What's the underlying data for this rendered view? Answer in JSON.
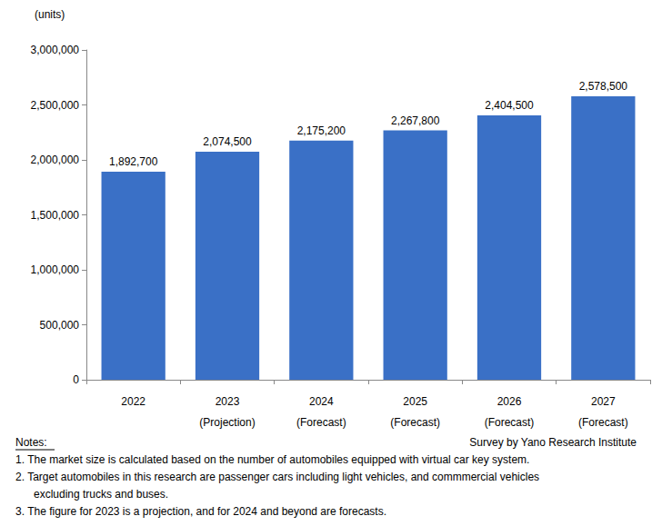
{
  "chart_data": {
    "type": "bar",
    "y_label": "(units)",
    "categories": [
      "2022",
      "2023\n(Projection)",
      "2024\n(Forecast)",
      "2025\n(Forecast)",
      "2026\n(Forecast)",
      "2027\n(Forecast)"
    ],
    "values": [
      1892700,
      2074500,
      2175200,
      2267800,
      2404500,
      2578500
    ],
    "value_labels": [
      "1,892,700",
      "2,074,500",
      "2,175,200",
      "2,267,800",
      "2,404,500",
      "2,578,500"
    ],
    "color": "#3a70c6",
    "ylim": [
      0,
      3000000
    ],
    "yticks": [
      0,
      {
        "value": 500000,
        "label": "500,000"
      },
      {
        "value": 1000000,
        "label": "1,000,000"
      },
      {
        "value": 1500000,
        "label": "1,500,000"
      },
      {
        "value": 2000000,
        "label": "2,000,000"
      },
      {
        "value": 2500000,
        "label": "2,500,000"
      },
      {
        "value": 3000000,
        "label": "3,000,000"
      }
    ],
    "grid": false,
    "data_labels": true,
    "notes_title": "Notes:",
    "notes": [
      "1. The market size is calculated based on the number of automobiles equipped with virtual car key system.",
      "2. Target automobiles in this research are passenger cars including light vehicles, and commmercial vehicles",
      "excluding trucks and buses.",
      "3. The figure for 2023 is a projection, and for 2024 and beyond are forecasts."
    ],
    "source": "Survey by Yano Research Institute"
  }
}
